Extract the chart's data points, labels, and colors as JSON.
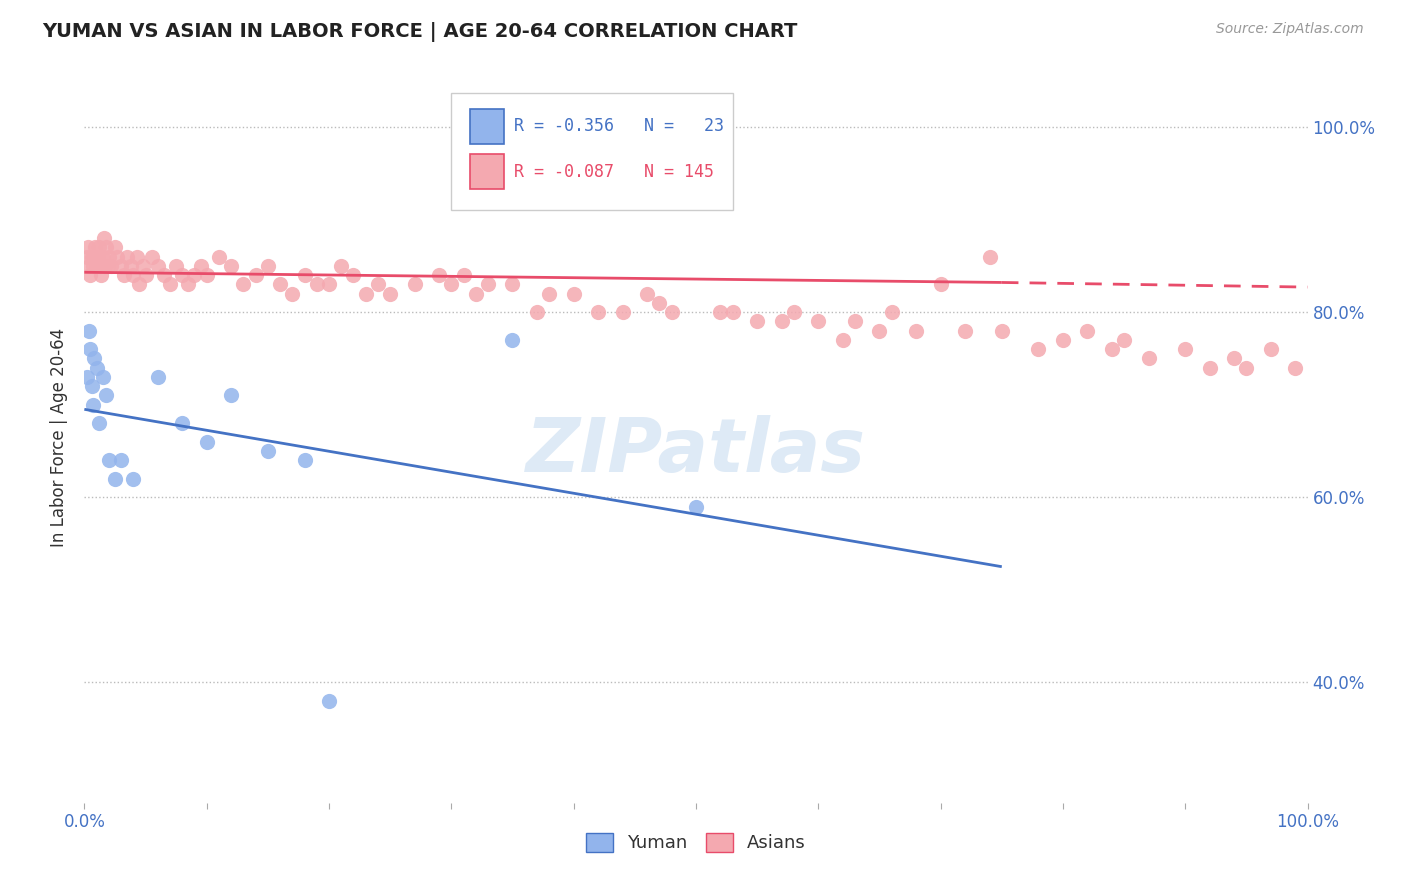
{
  "title": "YUMAN VS ASIAN IN LABOR FORCE | AGE 20-64 CORRELATION CHART",
  "source": "Source: ZipAtlas.com",
  "ylabel": "In Labor Force | Age 20-64",
  "xlim": [
    0,
    1
  ],
  "ylim": [
    0.27,
    1.06
  ],
  "yticks": [
    0.4,
    0.6,
    0.8,
    1.0
  ],
  "ytick_labels": [
    "40.0%",
    "60.0%",
    "80.0%",
    "100.0%"
  ],
  "xtick_labels_show": [
    "0.0%",
    "100.0%"
  ],
  "yuman_color": "#92B4EC",
  "asian_color": "#F4A9B0",
  "yuman_line_color": "#4472C4",
  "asian_line_color": "#E84C6A",
  "watermark": "ZIPatlas",
  "yuman_R": -0.356,
  "yuman_N": 23,
  "asian_R": -0.087,
  "asian_N": 145,
  "blue_line_x0": 0.0,
  "blue_line_y0": 0.695,
  "blue_line_x1": 0.75,
  "blue_line_y1": 0.525,
  "pink_line_x0": 0.0,
  "pink_line_y0": 0.843,
  "pink_line_x1": 0.75,
  "pink_line_y1": 0.832,
  "pink_line_dash_x0": 0.75,
  "pink_line_dash_y0": 0.832,
  "pink_line_dash_x1": 1.0,
  "pink_line_dash_y1": 0.827,
  "yuman_scatter_x": [
    0.002,
    0.004,
    0.005,
    0.006,
    0.007,
    0.008,
    0.01,
    0.012,
    0.015,
    0.018,
    0.02,
    0.025,
    0.03,
    0.04,
    0.06,
    0.08,
    0.1,
    0.12,
    0.15,
    0.18,
    0.2,
    0.35,
    0.5
  ],
  "yuman_scatter_y": [
    0.73,
    0.78,
    0.76,
    0.72,
    0.7,
    0.75,
    0.74,
    0.68,
    0.73,
    0.71,
    0.64,
    0.62,
    0.64,
    0.62,
    0.73,
    0.68,
    0.66,
    0.71,
    0.65,
    0.64,
    0.38,
    0.77,
    0.59
  ],
  "asian_scatter_x": [
    0.002,
    0.003,
    0.004,
    0.005,
    0.006,
    0.007,
    0.008,
    0.009,
    0.01,
    0.011,
    0.012,
    0.013,
    0.014,
    0.015,
    0.016,
    0.017,
    0.018,
    0.019,
    0.02,
    0.022,
    0.025,
    0.027,
    0.03,
    0.032,
    0.035,
    0.038,
    0.04,
    0.043,
    0.045,
    0.048,
    0.05,
    0.055,
    0.06,
    0.065,
    0.07,
    0.075,
    0.08,
    0.085,
    0.09,
    0.095,
    0.1,
    0.11,
    0.12,
    0.13,
    0.14,
    0.15,
    0.16,
    0.17,
    0.18,
    0.19,
    0.2,
    0.21,
    0.22,
    0.23,
    0.24,
    0.25,
    0.27,
    0.29,
    0.3,
    0.31,
    0.32,
    0.33,
    0.35,
    0.37,
    0.38,
    0.4,
    0.42,
    0.44,
    0.46,
    0.47,
    0.48,
    0.5,
    0.52,
    0.53,
    0.55,
    0.57,
    0.58,
    0.6,
    0.62,
    0.63,
    0.65,
    0.66,
    0.68,
    0.7,
    0.72,
    0.74,
    0.75,
    0.78,
    0.8,
    0.82,
    0.84,
    0.85,
    0.87,
    0.9,
    0.92,
    0.94,
    0.95,
    0.97,
    0.99
  ],
  "asian_scatter_y": [
    0.86,
    0.87,
    0.85,
    0.84,
    0.86,
    0.85,
    0.86,
    0.87,
    0.85,
    0.86,
    0.87,
    0.85,
    0.84,
    0.86,
    0.88,
    0.85,
    0.87,
    0.85,
    0.86,
    0.85,
    0.87,
    0.86,
    0.85,
    0.84,
    0.86,
    0.85,
    0.84,
    0.86,
    0.83,
    0.85,
    0.84,
    0.86,
    0.85,
    0.84,
    0.83,
    0.85,
    0.84,
    0.83,
    0.84,
    0.85,
    0.84,
    0.86,
    0.85,
    0.83,
    0.84,
    0.85,
    0.83,
    0.82,
    0.84,
    0.83,
    0.83,
    0.85,
    0.84,
    0.82,
    0.83,
    0.82,
    0.83,
    0.84,
    0.83,
    0.84,
    0.82,
    0.83,
    0.83,
    0.8,
    0.82,
    0.82,
    0.8,
    0.8,
    0.82,
    0.81,
    0.8,
    0.93,
    0.8,
    0.8,
    0.79,
    0.79,
    0.8,
    0.79,
    0.77,
    0.79,
    0.78,
    0.8,
    0.78,
    0.83,
    0.78,
    0.86,
    0.78,
    0.76,
    0.77,
    0.78,
    0.76,
    0.77,
    0.75,
    0.76,
    0.74,
    0.75,
    0.74,
    0.76,
    0.74
  ]
}
